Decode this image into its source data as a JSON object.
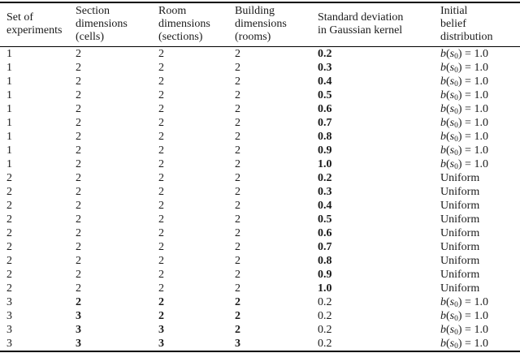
{
  "colors": {
    "background": "#ffffff",
    "text": "#1a1a1a",
    "rule": "#000000"
  },
  "table": {
    "headers": [
      {
        "id": "set",
        "label": "Set of experiments",
        "lines": [
          "Set of",
          "experiments"
        ]
      },
      {
        "id": "section",
        "label": "Section dimensions (cells)",
        "lines": [
          "Section",
          "dimensions",
          "(cells)"
        ]
      },
      {
        "id": "room",
        "label": "Room dimensions (sections)",
        "lines": [
          "Room",
          "dimensions",
          "(sections)"
        ]
      },
      {
        "id": "building",
        "label": "Building dimensions (rooms)",
        "lines": [
          "Building",
          "dimensions",
          "(rooms)"
        ]
      },
      {
        "id": "std",
        "label": "Standard deviation in Gaussian kernel",
        "lines": [
          "Standard deviation",
          "in Gaussian kernel"
        ]
      },
      {
        "id": "belief",
        "label": "Initial belief distribution",
        "lines": [
          "Initial",
          "belief",
          "distribution"
        ]
      }
    ],
    "rows": [
      {
        "set": "1",
        "section": "2",
        "room": "2",
        "building": "2",
        "std": "0.2",
        "belief": "b(s0) = 1.0",
        "bold": "std"
      },
      {
        "set": "1",
        "section": "2",
        "room": "2",
        "building": "2",
        "std": "0.3",
        "belief": "b(s0) = 1.0",
        "bold": "std"
      },
      {
        "set": "1",
        "section": "2",
        "room": "2",
        "building": "2",
        "std": "0.4",
        "belief": "b(s0) = 1.0",
        "bold": "std"
      },
      {
        "set": "1",
        "section": "2",
        "room": "2",
        "building": "2",
        "std": "0.5",
        "belief": "b(s0) = 1.0",
        "bold": "std"
      },
      {
        "set": "1",
        "section": "2",
        "room": "2",
        "building": "2",
        "std": "0.6",
        "belief": "b(s0) = 1.0",
        "bold": "std"
      },
      {
        "set": "1",
        "section": "2",
        "room": "2",
        "building": "2",
        "std": "0.7",
        "belief": "b(s0) = 1.0",
        "bold": "std"
      },
      {
        "set": "1",
        "section": "2",
        "room": "2",
        "building": "2",
        "std": "0.8",
        "belief": "b(s0) = 1.0",
        "bold": "std"
      },
      {
        "set": "1",
        "section": "2",
        "room": "2",
        "building": "2",
        "std": "0.9",
        "belief": "b(s0) = 1.0",
        "bold": "std"
      },
      {
        "set": "1",
        "section": "2",
        "room": "2",
        "building": "2",
        "std": "1.0",
        "belief": "b(s0) = 1.0",
        "bold": "std"
      },
      {
        "set": "2",
        "section": "2",
        "room": "2",
        "building": "2",
        "std": "0.2",
        "belief": "Uniform",
        "bold": "std"
      },
      {
        "set": "2",
        "section": "2",
        "room": "2",
        "building": "2",
        "std": "0.3",
        "belief": "Uniform",
        "bold": "std"
      },
      {
        "set": "2",
        "section": "2",
        "room": "2",
        "building": "2",
        "std": "0.4",
        "belief": "Uniform",
        "bold": "std"
      },
      {
        "set": "2",
        "section": "2",
        "room": "2",
        "building": "2",
        "std": "0.5",
        "belief": "Uniform",
        "bold": "std"
      },
      {
        "set": "2",
        "section": "2",
        "room": "2",
        "building": "2",
        "std": "0.6",
        "belief": "Uniform",
        "bold": "std"
      },
      {
        "set": "2",
        "section": "2",
        "room": "2",
        "building": "2",
        "std": "0.7",
        "belief": "Uniform",
        "bold": "std"
      },
      {
        "set": "2",
        "section": "2",
        "room": "2",
        "building": "2",
        "std": "0.8",
        "belief": "Uniform",
        "bold": "std"
      },
      {
        "set": "2",
        "section": "2",
        "room": "2",
        "building": "2",
        "std": "0.9",
        "belief": "Uniform",
        "bold": "std"
      },
      {
        "set": "2",
        "section": "2",
        "room": "2",
        "building": "2",
        "std": "1.0",
        "belief": "Uniform",
        "bold": "std"
      },
      {
        "set": "3",
        "section": "2",
        "room": "2",
        "building": "2",
        "std": "0.2",
        "belief": "b(s0) = 1.0",
        "bold": "dims"
      },
      {
        "set": "3",
        "section": "3",
        "room": "2",
        "building": "2",
        "std": "0.2",
        "belief": "b(s0) = 1.0",
        "bold": "dims"
      },
      {
        "set": "3",
        "section": "3",
        "room": "3",
        "building": "2",
        "std": "0.2",
        "belief": "b(s0) = 1.0",
        "bold": "dims"
      },
      {
        "set": "3",
        "section": "3",
        "room": "3",
        "building": "3",
        "std": "0.2",
        "belief": "b(s0) = 1.0",
        "bold": "dims"
      }
    ]
  }
}
